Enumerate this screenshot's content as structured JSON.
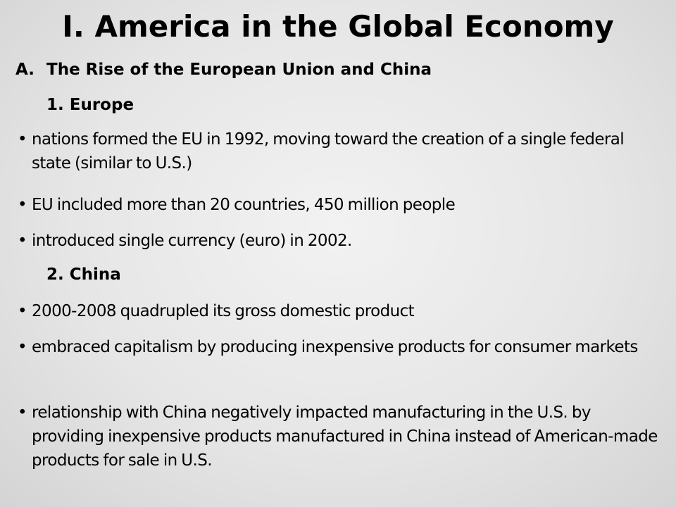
{
  "slide": {
    "title": "I.  America in the Global Economy",
    "section": {
      "letter": "A.",
      "heading": "The Rise of the European Union and China"
    },
    "subsections": [
      {
        "label": "1.  Europe",
        "bullets": [
          "nations formed the EU in 1992, moving toward the creation of a single federal state (similar to U.S.)",
          "EU included more than 20 countries, 450 million people",
          "introduced single currency (euro) in 2002."
        ]
      },
      {
        "label": "2.  China",
        "bullets": [
          "2000-2008 quadrupled its gross domestic product",
          "embraced capitalism by producing inexpensive products for consumer markets",
          "relationship with China negatively impacted manufacturing in the U.S. by providing inexpensive products manufactured in China instead of American-made products for sale in U.S."
        ]
      }
    ],
    "bullet_glyph": "•"
  }
}
